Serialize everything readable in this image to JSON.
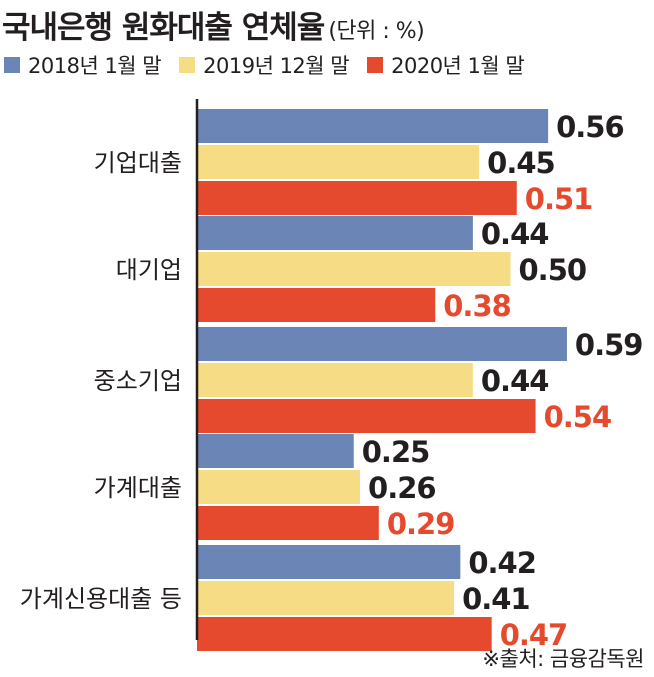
{
  "title": "국내은행 원화대출 연체율",
  "unit": "(단위 : %)",
  "source": "※출처: 금융감독원",
  "colors": {
    "series1": "#6a85b6",
    "series2": "#f7dc86",
    "series3": "#e64a2e",
    "axis": "#231f20"
  },
  "chart_data": {
    "type": "bar",
    "orientation": "horizontal",
    "categories": [
      "기업대출",
      "대기업",
      "중소기업",
      "가계대출",
      "가계신용대출 등"
    ],
    "series": [
      {
        "name": "2018년 1월 말",
        "values": [
          0.56,
          0.44,
          0.59,
          0.25,
          0.42
        ]
      },
      {
        "name": "2019년 12월 말",
        "values": [
          0.45,
          0.5,
          0.44,
          0.26,
          0.41
        ]
      },
      {
        "name": "2020년 1월 말",
        "values": [
          0.51,
          0.38,
          0.54,
          0.29,
          0.47
        ]
      }
    ],
    "value_labels": [
      [
        "0.56",
        "0.44",
        "0.59",
        "0.25",
        "0.42"
      ],
      [
        "0.45",
        "0.50",
        "0.44",
        "0.26",
        "0.41"
      ],
      [
        "0.51",
        "0.38",
        "0.54",
        "0.29",
        "0.47"
      ]
    ],
    "xlim": [
      0,
      0.6
    ],
    "legend_position": "top",
    "grid": false
  }
}
